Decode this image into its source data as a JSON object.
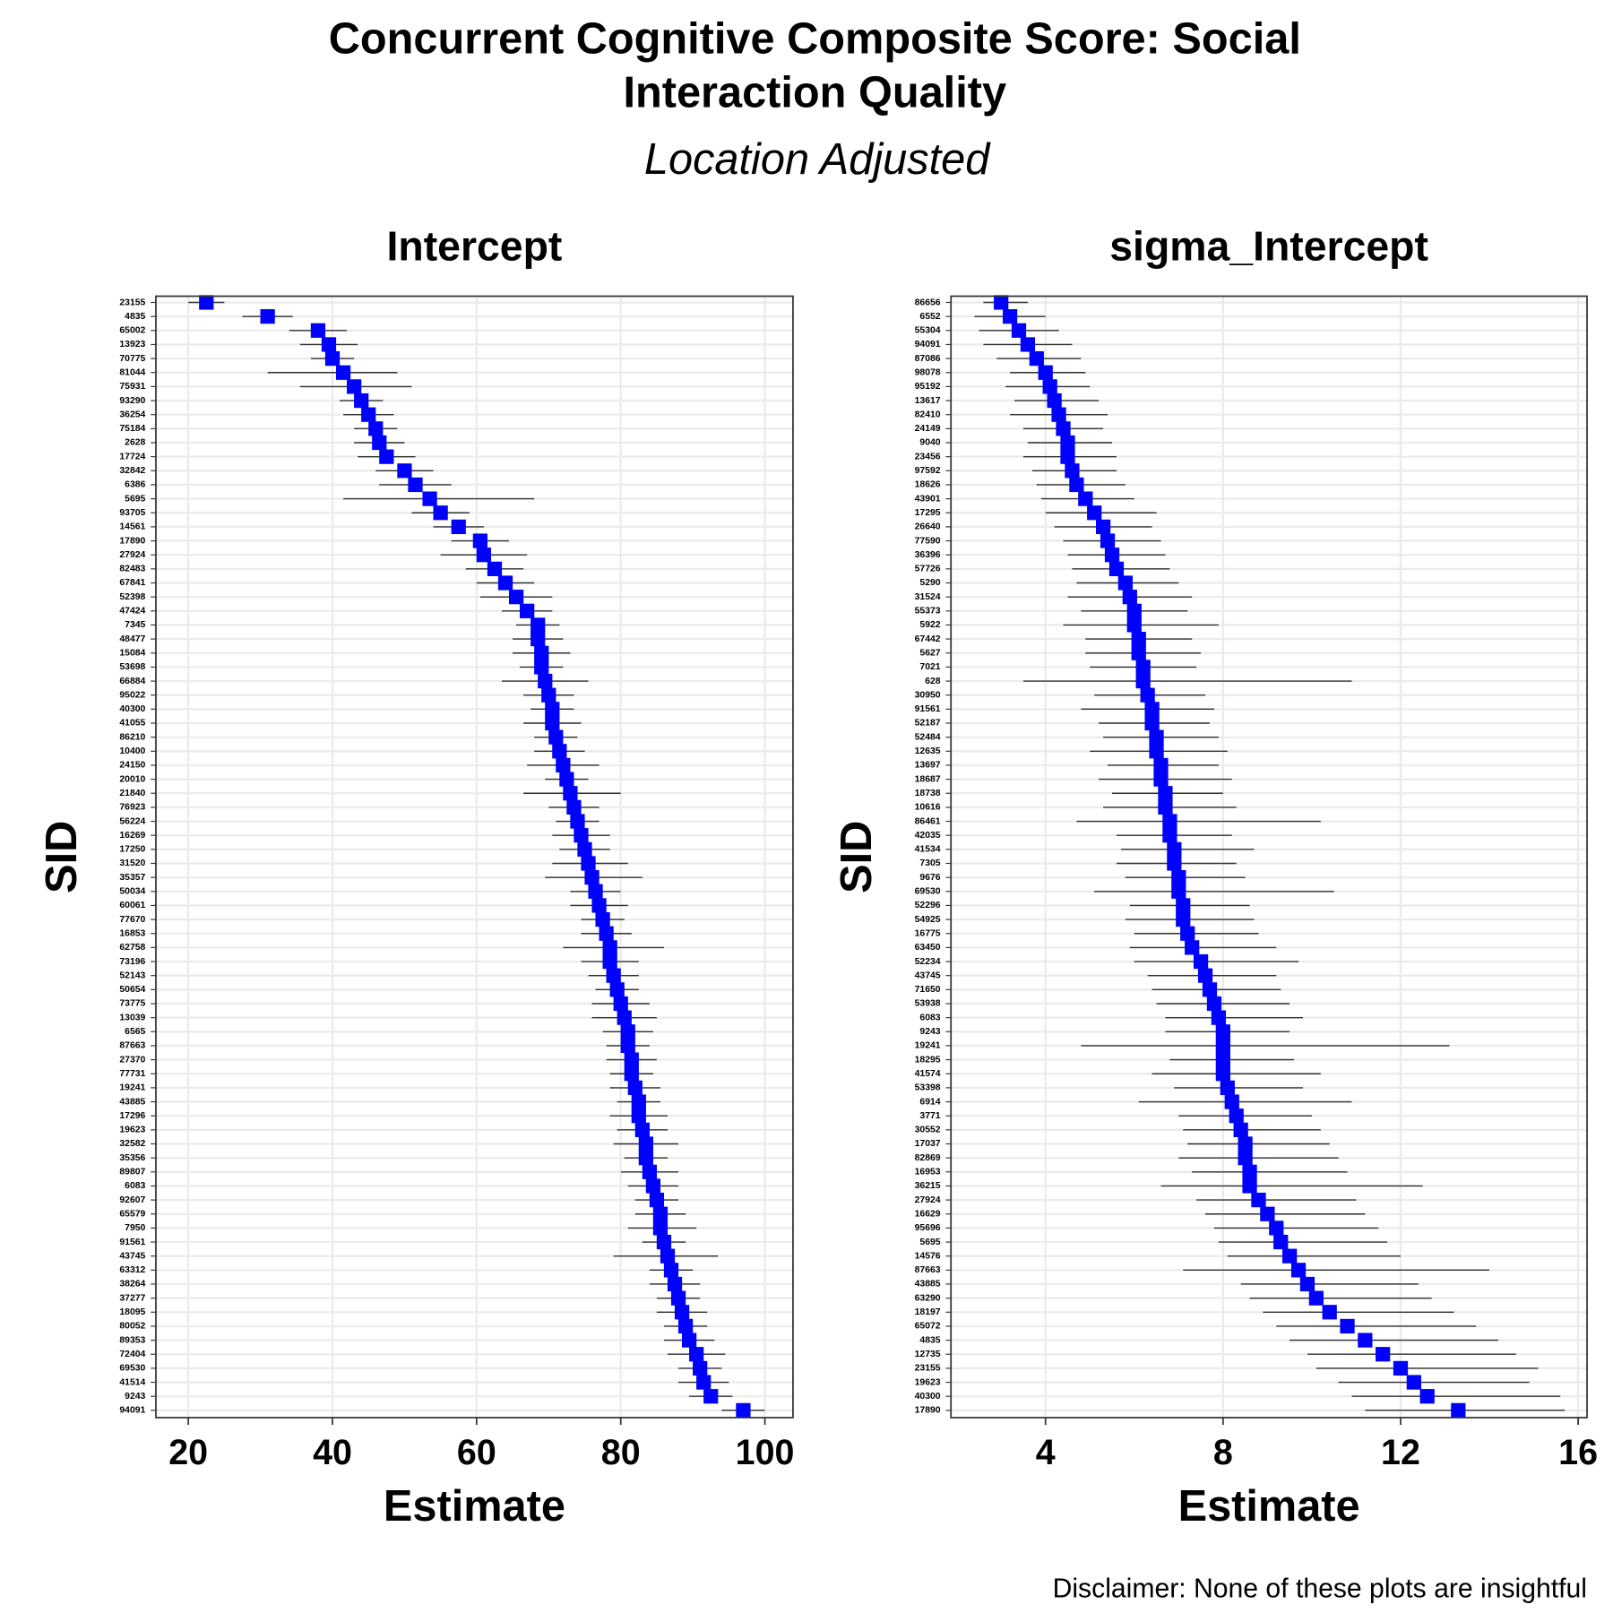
{
  "title": [
    "Concurrent Cognitive Composite Score: Social",
    "Interaction Quality"
  ],
  "subtitle": "Location Adjusted",
  "caption": "Disclaimer: None of these plots are insightful",
  "chart_data": [
    {
      "type": "errorbar",
      "title": "Intercept",
      "x_label": "Estimate",
      "y_label": "SID",
      "color": "#0000ff",
      "grid": true,
      "xlim": [
        15.5,
        103.9
      ],
      "xticks": [
        20,
        40,
        60,
        80,
        100
      ],
      "categories": [
        "23155",
        "4835",
        "65002",
        "13923",
        "70775",
        "81044",
        "75931",
        "93290",
        "36254",
        "75184",
        "2628",
        "17724",
        "32842",
        "6386",
        "5695",
        "93705",
        "14561",
        "17890",
        "27924",
        "82483",
        "67841",
        "52398",
        "47424",
        "7345",
        "48477",
        "15084",
        "53698",
        "66884",
        "95022",
        "40300",
        "41055",
        "86210",
        "10400",
        "24150",
        "20010",
        "21840",
        "76923",
        "56224",
        "16269",
        "17250",
        "31520",
        "35357",
        "50034",
        "60061",
        "77670",
        "16853",
        "62758",
        "73196",
        "52143",
        "50654",
        "73775",
        "13039",
        "6565",
        "87663",
        "27370",
        "77731",
        "19241",
        "43885",
        "17296",
        "19623",
        "32582",
        "35356",
        "89807",
        "6083",
        "92607",
        "65579",
        "7950",
        "91561",
        "43745",
        "63312",
        "38264",
        "37277",
        "18095",
        "80052",
        "89353",
        "72404",
        "69530",
        "41514",
        "9243",
        "94091"
      ],
      "values": [
        22.5,
        31.0,
        38.0,
        39.5,
        40.0,
        41.5,
        43.0,
        44.0,
        45.0,
        46.0,
        46.5,
        47.5,
        50.0,
        51.5,
        53.5,
        55.0,
        57.5,
        60.5,
        61.0,
        62.5,
        64.0,
        65.5,
        67.0,
        68.5,
        68.5,
        69.0,
        69.0,
        69.5,
        70.0,
        70.5,
        70.5,
        71.0,
        71.5,
        72.0,
        72.5,
        73.0,
        73.5,
        74.0,
        74.5,
        75.0,
        75.5,
        76.0,
        76.5,
        77.0,
        77.5,
        78.0,
        78.5,
        78.5,
        79.0,
        79.5,
        80.0,
        80.5,
        81.0,
        81.0,
        81.5,
        81.5,
        82.0,
        82.5,
        82.5,
        83.0,
        83.5,
        83.5,
        84.0,
        84.5,
        85.0,
        85.5,
        85.5,
        86.0,
        86.5,
        87.0,
        87.5,
        88.0,
        88.5,
        89.0,
        89.5,
        90.5,
        91.0,
        91.5,
        92.5,
        97.0
      ],
      "lower": [
        20.0,
        27.5,
        34.0,
        35.5,
        37.0,
        31.0,
        35.5,
        41.0,
        41.5,
        43.0,
        43.0,
        43.5,
        46.0,
        46.5,
        41.5,
        51.0,
        54.0,
        56.5,
        55.0,
        58.5,
        60.0,
        60.5,
        63.5,
        65.5,
        65.0,
        65.0,
        66.0,
        63.5,
        66.5,
        67.5,
        66.5,
        68.0,
        68.0,
        67.0,
        69.5,
        66.5,
        70.0,
        71.0,
        70.5,
        71.5,
        70.5,
        69.5,
        73.0,
        73.0,
        74.5,
        74.5,
        72.0,
        74.5,
        75.5,
        76.5,
        76.0,
        76.0,
        77.5,
        78.0,
        78.0,
        78.5,
        78.5,
        79.5,
        78.5,
        79.5,
        79.0,
        80.5,
        80.0,
        81.0,
        82.0,
        82.0,
        81.0,
        83.0,
        79.0,
        84.0,
        84.0,
        85.0,
        85.0,
        86.0,
        86.0,
        86.5,
        88.0,
        88.0,
        89.5,
        94.0
      ],
      "upper": [
        25.0,
        34.5,
        42.0,
        43.5,
        43.0,
        49.0,
        51.0,
        47.0,
        48.5,
        49.0,
        50.0,
        51.5,
        54.0,
        56.5,
        68.0,
        59.0,
        61.0,
        64.5,
        67.0,
        66.5,
        68.0,
        70.5,
        70.5,
        71.5,
        72.0,
        73.0,
        72.0,
        75.5,
        73.5,
        73.5,
        74.5,
        74.0,
        75.0,
        77.0,
        75.5,
        80.0,
        77.0,
        77.0,
        78.5,
        78.5,
        81.0,
        83.0,
        80.0,
        81.0,
        80.5,
        81.5,
        86.0,
        82.5,
        82.5,
        82.5,
        84.0,
        85.0,
        84.5,
        84.0,
        85.0,
        84.5,
        85.5,
        85.5,
        86.5,
        86.5,
        88.0,
        86.5,
        88.0,
        88.0,
        88.0,
        89.0,
        90.5,
        89.0,
        93.5,
        90.0,
        91.0,
        91.0,
        92.0,
        92.0,
        93.0,
        94.5,
        94.0,
        95.0,
        95.5,
        100.0
      ]
    },
    {
      "type": "errorbar",
      "title": "sigma_Intercept",
      "x_label": "Estimate",
      "y_label": "SID",
      "color": "#0000ff",
      "grid": true,
      "xlim": [
        1.87,
        16.2
      ],
      "xticks": [
        4,
        8,
        12,
        16
      ],
      "categories": [
        "86656",
        "6552",
        "55304",
        "94091",
        "87086",
        "98078",
        "95192",
        "13617",
        "82410",
        "24149",
        "9040",
        "23456",
        "97592",
        "18626",
        "43901",
        "17295",
        "26640",
        "77590",
        "36396",
        "57726",
        "5290",
        "31524",
        "55373",
        "5922",
        "67442",
        "5627",
        "7021",
        "628",
        "30950",
        "91561",
        "52187",
        "52484",
        "12635",
        "13697",
        "18687",
        "18738",
        "10616",
        "86461",
        "42035",
        "41534",
        "7305",
        "9676",
        "69530",
        "52296",
        "54925",
        "16775",
        "63450",
        "52234",
        "43745",
        "71650",
        "53938",
        "6083",
        "9243",
        "19241",
        "18295",
        "41574",
        "53398",
        "6914",
        "3771",
        "30552",
        "17037",
        "82869",
        "16953",
        "36215",
        "27924",
        "16629",
        "95696",
        "5695",
        "14576",
        "87663",
        "43885",
        "63290",
        "18197",
        "65072",
        "4835",
        "12735",
        "23155",
        "19623",
        "40300",
        "17890"
      ],
      "values": [
        3.0,
        3.2,
        3.4,
        3.6,
        3.8,
        4.0,
        4.1,
        4.2,
        4.3,
        4.4,
        4.5,
        4.5,
        4.6,
        4.7,
        4.9,
        5.1,
        5.3,
        5.4,
        5.5,
        5.6,
        5.8,
        5.9,
        6.0,
        6.0,
        6.1,
        6.1,
        6.2,
        6.2,
        6.3,
        6.4,
        6.4,
        6.5,
        6.5,
        6.6,
        6.6,
        6.7,
        6.7,
        6.8,
        6.8,
        6.9,
        6.9,
        7.0,
        7.0,
        7.1,
        7.1,
        7.2,
        7.3,
        7.5,
        7.6,
        7.7,
        7.8,
        7.9,
        8.0,
        8.0,
        8.0,
        8.0,
        8.1,
        8.2,
        8.3,
        8.4,
        8.5,
        8.5,
        8.6,
        8.6,
        8.8,
        9.0,
        9.2,
        9.3,
        9.5,
        9.7,
        9.9,
        10.1,
        10.4,
        10.8,
        11.2,
        11.6,
        12.0,
        12.3,
        12.6,
        13.3
      ],
      "lower": [
        2.6,
        2.4,
        2.5,
        2.6,
        2.9,
        3.2,
        3.1,
        3.3,
        3.2,
        3.5,
        3.6,
        3.5,
        3.7,
        3.8,
        3.9,
        4.0,
        4.2,
        4.4,
        4.5,
        4.6,
        4.7,
        4.5,
        4.8,
        4.4,
        4.9,
        4.9,
        5.0,
        3.5,
        5.1,
        4.8,
        5.2,
        5.3,
        5.0,
        5.4,
        5.2,
        5.5,
        5.3,
        4.7,
        5.6,
        5.7,
        5.6,
        5.8,
        5.1,
        5.9,
        5.8,
        6.0,
        5.9,
        6.0,
        6.3,
        6.4,
        6.5,
        6.7,
        6.7,
        4.8,
        6.8,
        6.4,
        6.9,
        6.1,
        7.0,
        7.1,
        7.2,
        7.0,
        7.3,
        6.6,
        7.4,
        7.6,
        7.8,
        7.9,
        8.1,
        7.1,
        8.4,
        8.6,
        8.9,
        9.2,
        9.5,
        9.9,
        10.1,
        10.6,
        10.9,
        11.2
      ],
      "upper": [
        3.6,
        4.0,
        4.3,
        4.6,
        4.8,
        4.9,
        5.0,
        5.2,
        5.4,
        5.3,
        5.5,
        5.6,
        5.6,
        5.8,
        6.0,
        6.5,
        6.4,
        6.6,
        6.7,
        6.8,
        7.0,
        7.3,
        7.2,
        7.9,
        7.3,
        7.5,
        7.4,
        10.9,
        7.6,
        7.8,
        7.7,
        7.9,
        8.1,
        7.9,
        8.2,
        8.0,
        8.3,
        10.2,
        8.2,
        8.7,
        8.3,
        8.5,
        10.5,
        8.6,
        8.7,
        8.8,
        9.2,
        9.7,
        9.2,
        9.3,
        9.5,
        9.8,
        9.5,
        13.1,
        9.6,
        10.2,
        9.8,
        10.9,
        10.0,
        10.2,
        10.4,
        10.6,
        10.8,
        12.5,
        11.0,
        11.2,
        11.5,
        11.7,
        12.0,
        14.0,
        12.4,
        12.7,
        13.2,
        13.7,
        14.2,
        14.6,
        15.1,
        14.9,
        15.6,
        15.7
      ]
    }
  ]
}
